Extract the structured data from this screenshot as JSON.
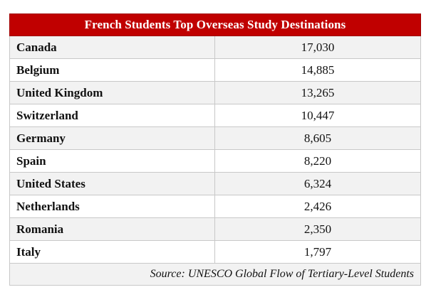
{
  "table": {
    "title": "French Students Top Overseas Study Destinations",
    "rows": [
      {
        "country": "Canada",
        "students": "17,030"
      },
      {
        "country": "Belgium",
        "students": "14,885"
      },
      {
        "country": "United Kingdom",
        "students": "13,265"
      },
      {
        "country": "Switzerland",
        "students": "10,447"
      },
      {
        "country": "Germany",
        "students": "8,605"
      },
      {
        "country": "Spain",
        "students": "8,220"
      },
      {
        "country": "United States",
        "students": "6,324"
      },
      {
        "country": "Netherlands",
        "students": "2,426"
      },
      {
        "country": "Romania",
        "students": "2,350"
      },
      {
        "country": "Italy",
        "students": "1,797"
      }
    ],
    "source": "Source: UNESCO Global Flow of Tertiary-Level Students"
  },
  "colors": {
    "header_bg": "#c00000",
    "header_text": "#ffffff",
    "row_alt_bg": "#f2f2f2",
    "border": "#c8c8c8"
  }
}
